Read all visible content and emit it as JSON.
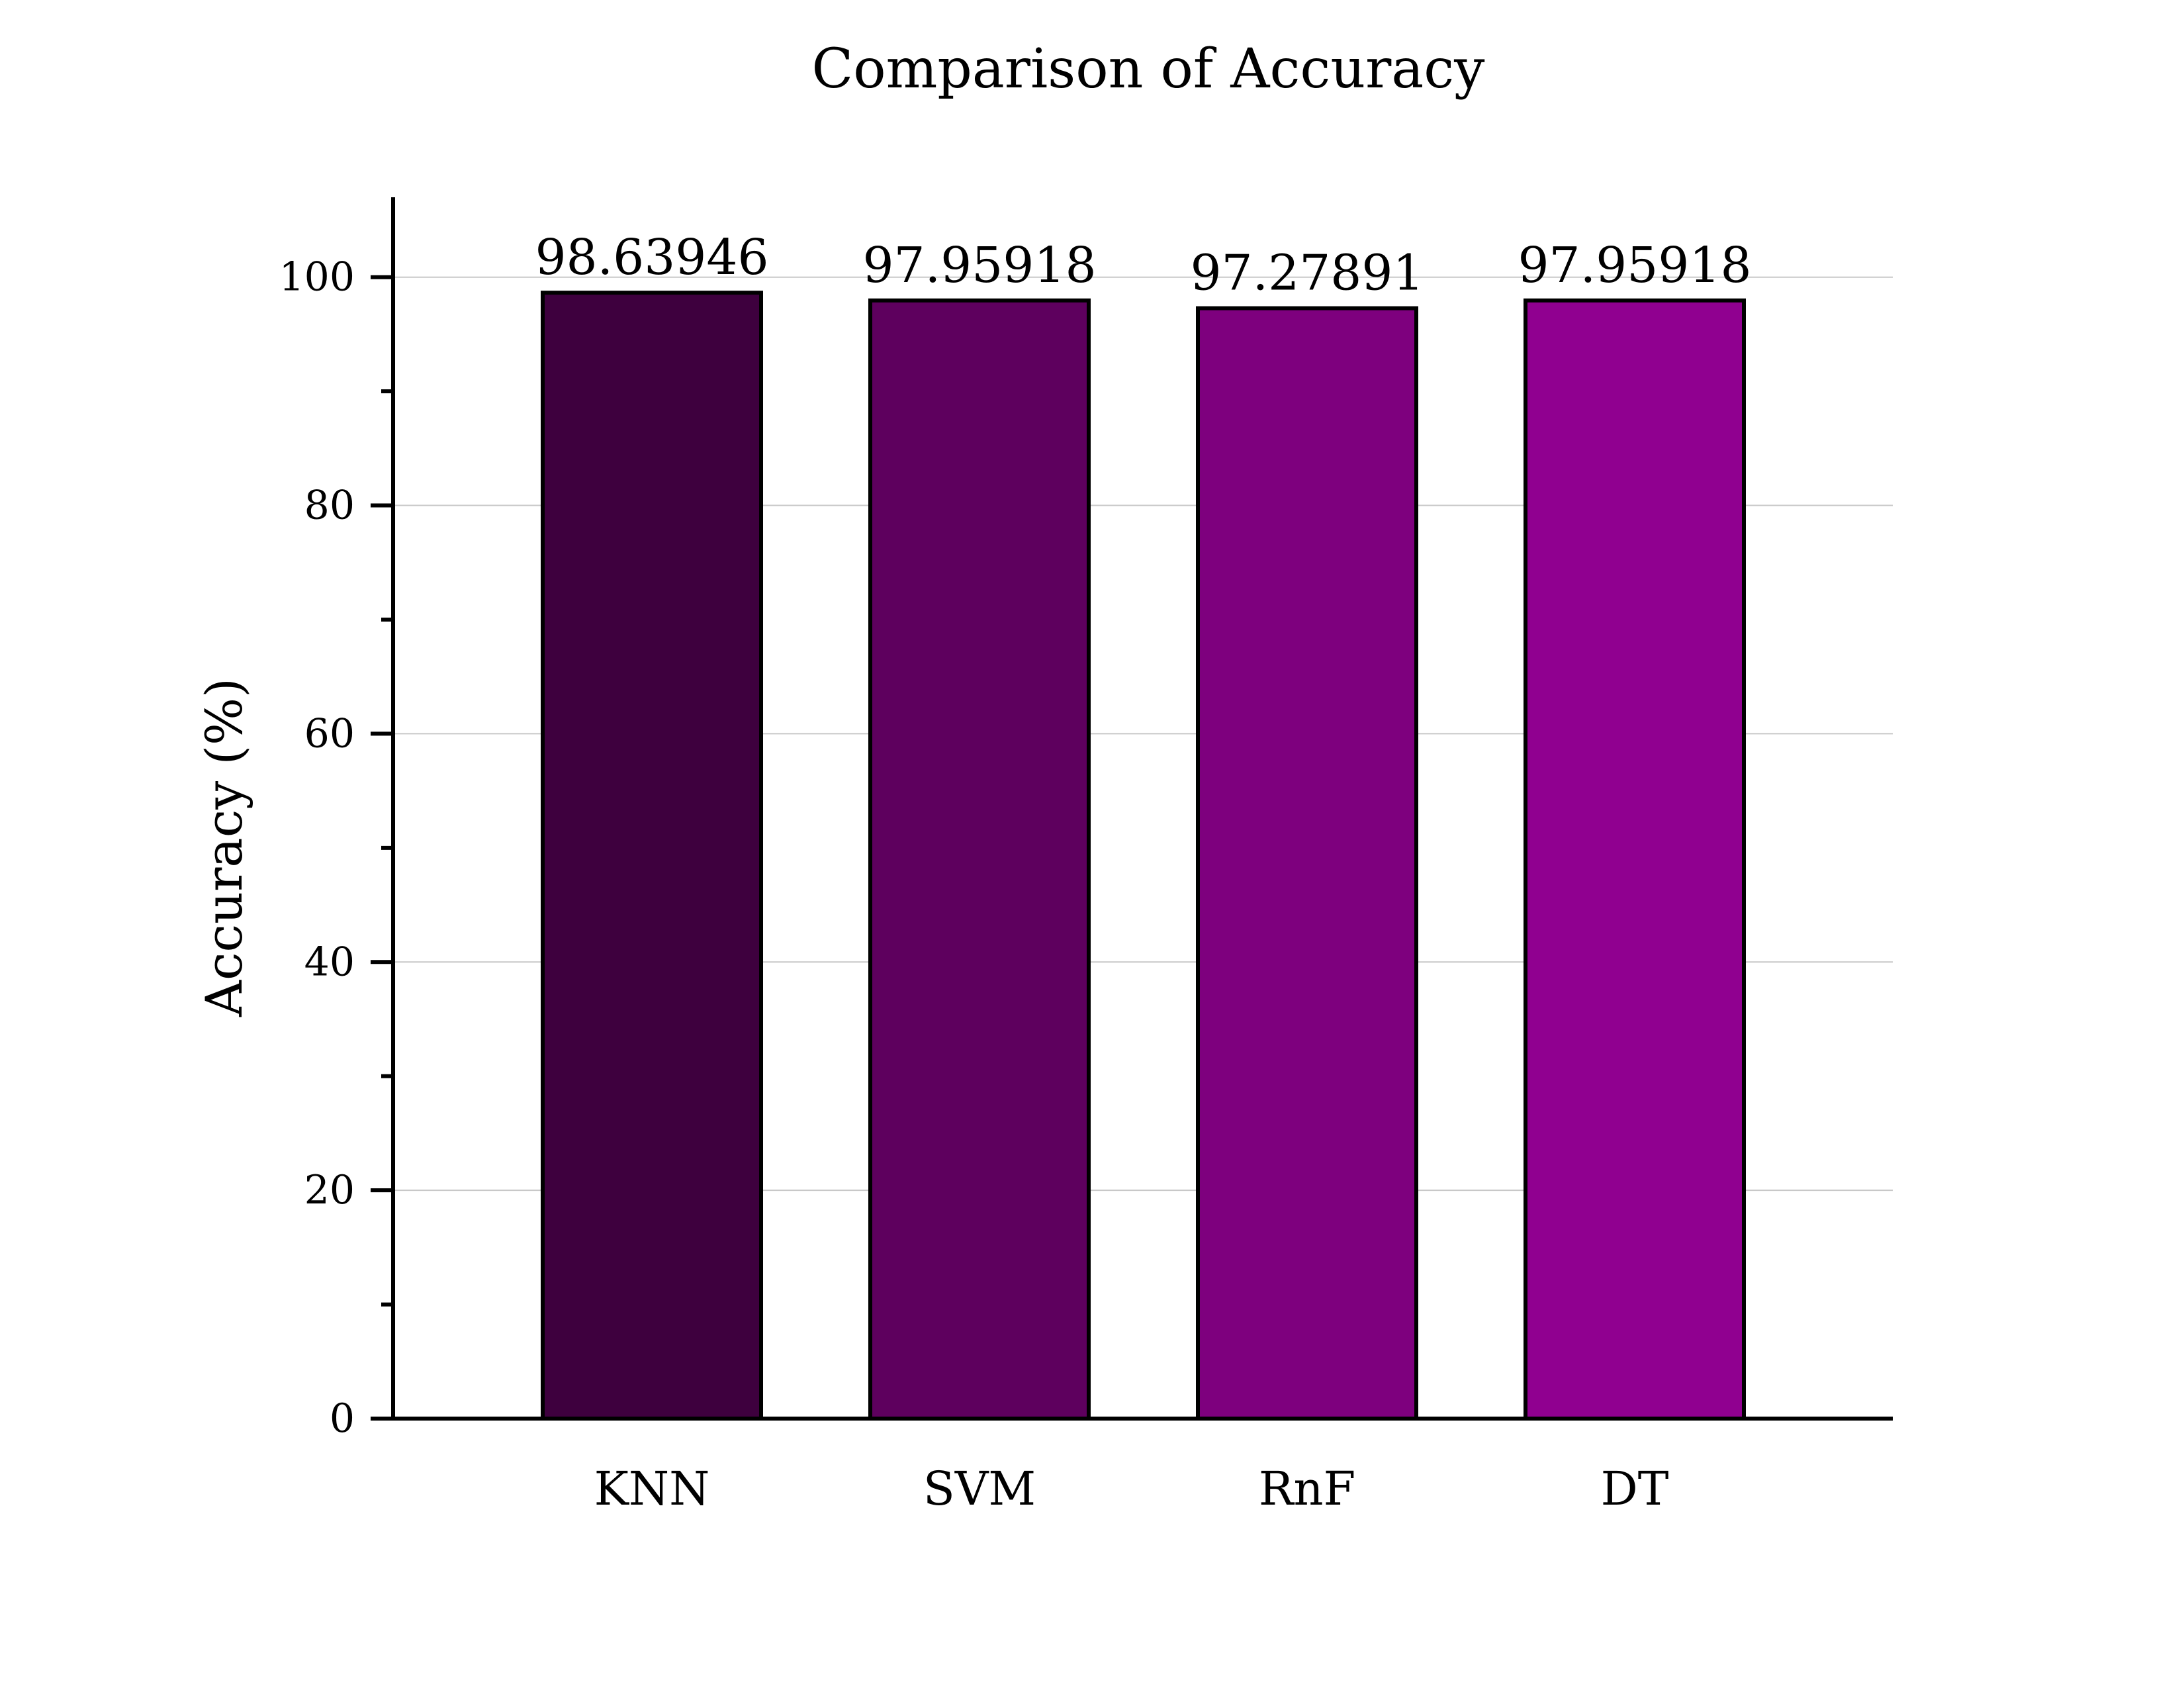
{
  "chart_data": {
    "type": "bar",
    "title": "Comparison of Accuracy",
    "xlabel": "",
    "ylabel": "Accuracy (%)",
    "categories": [
      "KNN",
      "SVM",
      "RnF",
      "DT"
    ],
    "values": [
      98.63946,
      97.95918,
      97.27891,
      97.95918
    ],
    "value_labels": [
      "98.63946",
      "97.95918",
      "97.27891",
      "97.95918"
    ],
    "colors": [
      "#3e003e",
      "#5e005e",
      "#7e007e",
      "#900090"
    ],
    "ylim": [
      0,
      107
    ],
    "yticks": [
      0,
      20,
      40,
      60,
      80,
      100
    ],
    "ytick_labels": [
      "0",
      "20",
      "40",
      "60",
      "80",
      "100"
    ],
    "minor_yticks": [
      10,
      30,
      50,
      70,
      90
    ],
    "grid": "horizontal",
    "legend": "none"
  }
}
